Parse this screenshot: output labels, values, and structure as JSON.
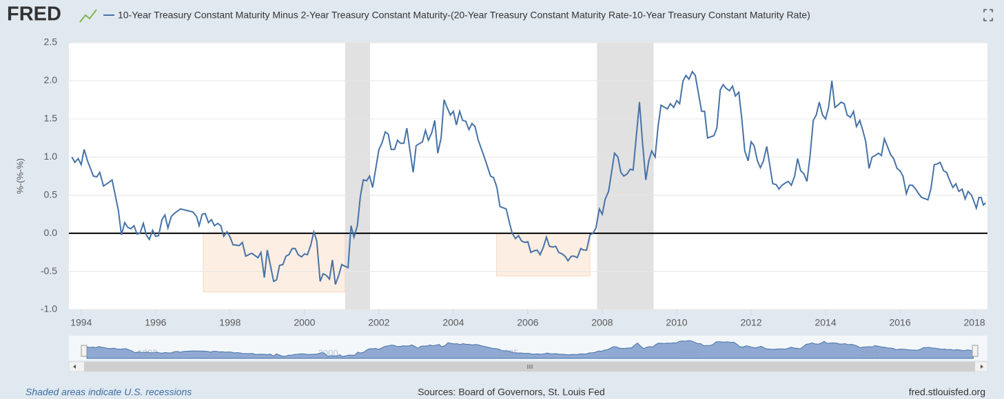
{
  "logo": "FRED",
  "note": "Shaded areas indicate U.S. recessions",
  "source": "Sources: Board of Governors, St. Louis Fed",
  "site": "fred.stlouisfed.org",
  "chart_data": {
    "type": "line",
    "ylabel": "%-(%-%)",
    "x": [
      1993.75,
      1993.83,
      1993.92,
      1994.0,
      1994.08,
      1994.17,
      1994.33,
      1994.42,
      1994.5,
      1994.6,
      1994.75,
      1994.83,
      1995.0,
      1995.08,
      1995.17,
      1995.25,
      1995.33,
      1995.42,
      1995.5,
      1995.58,
      1995.67,
      1995.75,
      1995.83,
      1995.92,
      1996.0,
      1996.08,
      1996.17,
      1996.25,
      1996.33,
      1996.42,
      1996.5,
      1996.67,
      1996.83,
      1997.0,
      1997.1,
      1997.17,
      1997.25,
      1997.33,
      1997.42,
      1997.5,
      1997.58,
      1997.67,
      1997.75,
      1997.83,
      1997.92,
      1998.0,
      1998.08,
      1998.25,
      1998.33,
      1998.42,
      1998.5,
      1998.58,
      1998.75,
      1998.83,
      1998.92,
      1999.0,
      1999.17,
      1999.25,
      1999.33,
      1999.42,
      1999.5,
      1999.58,
      1999.67,
      1999.75,
      1999.83,
      1999.92,
      2000.0,
      2000.08,
      2000.17,
      2000.25,
      2000.33,
      2000.42,
      2000.5,
      2000.58,
      2000.67,
      2000.75,
      2000.83,
      2000.92,
      2001.0,
      2001.08,
      2001.17,
      2001.25,
      2001.33,
      2001.42,
      2001.5,
      2001.58,
      2001.67,
      2001.75,
      2001.83,
      2002.0,
      2002.08,
      2002.17,
      2002.25,
      2002.33,
      2002.42,
      2002.5,
      2002.58,
      2002.67,
      2002.75,
      2002.83,
      2002.92,
      2003.0,
      2003.17,
      2003.25,
      2003.33,
      2003.42,
      2003.5,
      2003.58,
      2003.67,
      2003.75,
      2003.83,
      2003.92,
      2004.0,
      2004.08,
      2004.17,
      2004.25,
      2004.33,
      2004.42,
      2004.5,
      2004.58,
      2004.67,
      2004.83,
      2005.0,
      2005.08,
      2005.17,
      2005.25,
      2005.42,
      2005.5,
      2005.58,
      2005.67,
      2005.75,
      2005.83,
      2005.92,
      2006.0,
      2006.08,
      2006.17,
      2006.25,
      2006.33,
      2006.42,
      2006.5,
      2006.58,
      2006.67,
      2006.75,
      2006.83,
      2006.92,
      2007.0,
      2007.08,
      2007.17,
      2007.25,
      2007.33,
      2007.42,
      2007.5,
      2007.58,
      2007.67,
      2007.75,
      2007.83,
      2007.92,
      2008.0,
      2008.08,
      2008.17,
      2008.25,
      2008.33,
      2008.42,
      2008.5,
      2008.58,
      2008.67,
      2008.75,
      2008.83,
      2008.92,
      2009.0,
      2009.08,
      2009.17,
      2009.25,
      2009.33,
      2009.42,
      2009.5,
      2009.58,
      2009.75,
      2009.83,
      2009.92,
      2010.0,
      2010.08,
      2010.17,
      2010.25,
      2010.33,
      2010.42,
      2010.5,
      2010.58,
      2010.67,
      2010.75,
      2010.83,
      2011.0,
      2011.08,
      2011.17,
      2011.25,
      2011.33,
      2011.42,
      2011.5,
      2011.58,
      2011.67,
      2011.75,
      2011.83,
      2011.92,
      2012.0,
      2012.08,
      2012.17,
      2012.25,
      2012.33,
      2012.42,
      2012.5,
      2012.58,
      2012.67,
      2012.75,
      2012.83,
      2012.92,
      2013.0,
      2013.08,
      2013.17,
      2013.25,
      2013.33,
      2013.42,
      2013.5,
      2013.58,
      2013.67,
      2013.75,
      2013.83,
      2013.92,
      2014.0,
      2014.08,
      2014.17,
      2014.25,
      2014.33,
      2014.42,
      2014.5,
      2014.58,
      2014.67,
      2014.75,
      2014.83,
      2014.92,
      2015.0,
      2015.08,
      2015.17,
      2015.25,
      2015.33,
      2015.42,
      2015.5,
      2015.58,
      2015.67,
      2015.75,
      2015.83,
      2015.92,
      2016.0,
      2016.08,
      2016.17,
      2016.25,
      2016.33,
      2016.42,
      2016.5,
      2016.58,
      2016.75,
      2016.83,
      2016.92,
      2017.0,
      2017.08,
      2017.17,
      2017.25,
      2017.33,
      2017.42,
      2017.5,
      2017.58,
      2017.67,
      2017.75,
      2017.83,
      2017.92,
      2018.0,
      2018.05,
      2018.12,
      2018.18,
      2018.24,
      2018.3
    ],
    "series": [
      {
        "name": "10-Year Treasury Constant Maturity Minus 2-Year Treasury Constant Maturity-(20-Year Treasury Constant Maturity Rate-10-Year Treasury Constant Maturity Rate)",
        "color": "#4572a7",
        "values": [
          1.0,
          0.93,
          0.98,
          0.9,
          1.1,
          0.95,
          0.75,
          0.74,
          0.8,
          0.62,
          0.67,
          0.7,
          0.3,
          -0.02,
          0.14,
          0.08,
          0.06,
          0.1,
          -0.01,
          0.0,
          0.13,
          -0.02,
          -0.08,
          0.04,
          -0.04,
          -0.03,
          0.18,
          0.24,
          0.07,
          0.22,
          0.26,
          0.32,
          0.3,
          0.28,
          0.22,
          0.1,
          0.25,
          0.26,
          0.14,
          0.18,
          0.1,
          0.13,
          0.1,
          -0.04,
          0.02,
          -0.05,
          -0.15,
          -0.16,
          -0.12,
          -0.3,
          -0.28,
          -0.26,
          -0.32,
          -0.25,
          -0.58,
          -0.22,
          -0.63,
          -0.61,
          -0.42,
          -0.41,
          -0.3,
          -0.28,
          -0.2,
          -0.2,
          -0.28,
          -0.31,
          -0.27,
          -0.28,
          -0.15,
          0.02,
          -0.1,
          -0.63,
          -0.53,
          -0.55,
          -0.6,
          -0.35,
          -0.67,
          -0.55,
          -0.41,
          -0.43,
          -0.45,
          0.1,
          -0.05,
          0.1,
          0.48,
          0.7,
          0.69,
          0.75,
          0.6,
          1.1,
          1.18,
          1.33,
          1.3,
          1.1,
          1.1,
          1.22,
          1.18,
          1.18,
          1.38,
          1.1,
          0.8,
          1.15,
          1.2,
          1.35,
          1.22,
          1.32,
          1.48,
          1.05,
          1.25,
          1.75,
          1.65,
          1.55,
          1.6,
          1.42,
          1.6,
          1.48,
          1.47,
          1.36,
          1.44,
          1.4,
          1.22,
          1.0,
          0.75,
          0.73,
          0.6,
          0.35,
          0.32,
          0.15,
          0.0,
          -0.07,
          -0.03,
          -0.1,
          -0.12,
          -0.11,
          -0.25,
          -0.23,
          -0.22,
          -0.28,
          -0.18,
          -0.05,
          -0.17,
          -0.18,
          -0.17,
          -0.25,
          -0.27,
          -0.3,
          -0.36,
          -0.3,
          -0.3,
          -0.32,
          -0.2,
          -0.22,
          -0.22,
          -0.02,
          0.0,
          0.07,
          0.32,
          0.25,
          0.45,
          0.55,
          0.8,
          1.05,
          1.0,
          0.8,
          0.75,
          0.78,
          0.84,
          0.83,
          1.3,
          1.72,
          1.2,
          0.7,
          0.95,
          1.08,
          1.0,
          1.4,
          1.68,
          1.63,
          1.7,
          1.65,
          1.74,
          1.7,
          2.0,
          2.07,
          2.02,
          2.12,
          2.07,
          1.85,
          1.6,
          1.6,
          1.25,
          1.28,
          1.38,
          1.88,
          1.95,
          1.9,
          1.87,
          1.93,
          1.8,
          1.85,
          1.5,
          1.08,
          0.95,
          1.2,
          1.15,
          0.95,
          0.86,
          0.95,
          1.14,
          0.9,
          0.65,
          0.64,
          0.58,
          0.63,
          0.66,
          0.68,
          0.63,
          0.75,
          0.98,
          0.82,
          0.78,
          0.68,
          1.0,
          1.48,
          1.55,
          1.72,
          1.55,
          1.5,
          1.65,
          2.0,
          1.65,
          1.68,
          1.72,
          1.7,
          1.55,
          1.52,
          1.6,
          1.4,
          1.48,
          1.35,
          1.2,
          0.85,
          1.0,
          1.02,
          1.05,
          1.02,
          1.24,
          1.13,
          1.03,
          0.98,
          0.85,
          0.82,
          0.75,
          0.52,
          0.63,
          0.63,
          0.58,
          0.52,
          0.47,
          0.44,
          0.58,
          0.9,
          0.91,
          0.93,
          0.82,
          0.8,
          0.7,
          0.6,
          0.65,
          0.55,
          0.58,
          0.45,
          0.55,
          0.5,
          0.4,
          0.33,
          0.47,
          0.47,
          0.37,
          0.4
        ]
      }
    ],
    "xlim": [
      1993.67,
      2018.35
    ],
    "ylim": [
      -1.0,
      2.5
    ],
    "xticks": [
      1994,
      1996,
      1998,
      2000,
      2002,
      2004,
      2006,
      2008,
      2010,
      2012,
      2014,
      2016,
      2018
    ],
    "yticks": [
      {
        "value": -1.0,
        "label": "-1.0"
      },
      -0.5,
      {
        "value": 0.0,
        "label": "0.0"
      },
      0.5,
      {
        "value": 1.0,
        "label": "1.0"
      },
      1.5,
      {
        "value": 2.0,
        "label": "2.0"
      },
      2.5
    ],
    "grid": true,
    "zero_line": true,
    "recessions": [
      [
        2001.09,
        2001.76
      ],
      [
        2007.86,
        2009.38
      ]
    ],
    "highlights": [
      {
        "x": [
          1997.28,
          2001.09
        ],
        "y": [
          -0.77,
          0.0
        ]
      },
      {
        "x": [
          2005.16,
          2007.67
        ],
        "y": [
          -0.56,
          0.0
        ]
      }
    ],
    "navigator_labels": [
      1995,
      2000,
      2005,
      2010,
      2015
    ]
  }
}
